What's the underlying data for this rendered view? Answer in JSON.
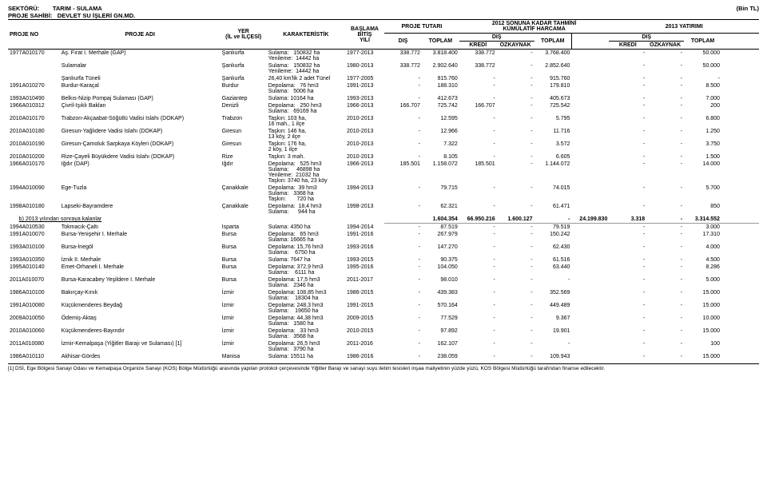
{
  "header": {
    "sektor_label": "SEKTÖRÜ:",
    "sektor": "TARIM - SULAMA",
    "sahibi_label": "PROJE SAHİBİ:",
    "sahibi": "DEVLET SU İŞLERİ GN.MD.",
    "unit": "(Bin TL)"
  },
  "cols": {
    "proje_no": "PROJE NO",
    "proje_adi": "PROJE ADI",
    "yer": "YER",
    "yer_sub": "(İL ve İLÇESİ)",
    "kar": "KARAKTERİSTİK",
    "baslama": "BAŞLAMA",
    "bitis": "BİTİŞ",
    "yili": "YILI",
    "proje_tutari": "PROJE TUTARI",
    "dis": "DIŞ",
    "toplam": "TOPLAM",
    "kumul": "2012 SONUNA KADAR TAHMİNİ",
    "kumul2": "KÜMÜLATİF HARCAMA",
    "kredi": "KREDİ",
    "ozkaynak": "ÖZKAYNAK",
    "y2013": "2013 YATIRIMI"
  },
  "rows": [
    {
      "no": "1977A010170",
      "adi": "Aş. Fırat I. Merhale (GAP)",
      "yer": "Şanlıurfa",
      "kar": "Sulama:   150832 ha\nYenileme:  14442 ha",
      "by": "1977-2013",
      "pt_dis": "338.772",
      "pt_top": "3.818.400",
      "k_dis": "338.772",
      "k_kr": "-",
      "k_oz": "3.768.400",
      "k_top": "",
      "y_dis": "-",
      "y_kr": "-",
      "y_oz": "50.000",
      "y_top": ""
    },
    {
      "no": "",
      "adi": "Sulamalar",
      "adi_indent": true,
      "yer": "Şanlıurfa",
      "kar": "Sulama:   150832 ha\nYenileme:  14442 ha",
      "by": "1980-2013",
      "pt_dis": "338.772",
      "pt_top": "2.902.640",
      "k_dis": "338.772",
      "k_kr": "-",
      "k_oz": "2.852.640",
      "k_top": "",
      "y_dis": "-",
      "y_kr": "-",
      "y_oz": "50.000",
      "y_top": ""
    },
    {
      "no": "",
      "adi": "Şanlıurfa Tüneli",
      "adi_indent": true,
      "yer": "Şanlıurfa",
      "kar": "26,40 km'lik 2 adet Tünel",
      "by": "1977-2005",
      "pt_dis": "-",
      "pt_top": "915.760",
      "k_dis": "-",
      "k_kr": "-",
      "k_oz": "915.760",
      "k_top": "",
      "y_dis": "-",
      "y_kr": "-",
      "y_oz": "-",
      "y_top": ""
    },
    {
      "no": "1991A010270",
      "adi": "Burdur-Karaçal",
      "yer": "Burdur",
      "kar": "Depolama:   76 hm3\nSulama:   5006 ha",
      "by": "1991-2013",
      "pt_dis": "-",
      "pt_top": "188.310",
      "k_dis": "-",
      "k_kr": "-",
      "k_oz": "179.810",
      "k_top": "",
      "y_dis": "-",
      "y_kr": "-",
      "y_oz": "8.500",
      "y_top": ""
    },
    {
      "no": "1993A010490",
      "adi": "Belkıs-Nizip Pompaj Sulaması (GAP)",
      "yer": "Gaziantep",
      "kar": "Sulama:   10164 ha",
      "by": "1993-2013",
      "pt_dis": "-",
      "pt_top": "412.673",
      "k_dis": "-",
      "k_kr": "-",
      "k_oz": "405.673",
      "k_top": "",
      "y_dis": "-",
      "y_kr": "-",
      "y_oz": "7.000",
      "y_top": ""
    },
    {
      "no": "1966A010312",
      "adi": "Çivril-Işıklı Baklan",
      "yer": "Denizli",
      "kar": "Depolama:   250 hm3\nSulama:   69169 ha",
      "by": "1966-2013",
      "pt_dis": "166.707",
      "pt_top": "725.742",
      "k_dis": "166.707",
      "k_kr": "-",
      "k_oz": "725.542",
      "k_top": "",
      "y_dis": "-",
      "y_kr": "-",
      "y_oz": "200",
      "y_top": ""
    },
    {
      "no": "2010A010170",
      "adi": "Trabzon-Akçaabat-Söğütlü Vadisi Islahı (DOKAP)",
      "yer": "Trabzon",
      "kar": "Taşkın: 103 ha,\n16 mah., 1 ilçe",
      "by": "2010-2013",
      "pt_dis": "-",
      "pt_top": "12.595",
      "k_dis": "-",
      "k_kr": "-",
      "k_oz": "5.795",
      "k_top": "",
      "y_dis": "-",
      "y_kr": "-",
      "y_oz": "6.800",
      "y_top": ""
    },
    {
      "no": "2010A010180",
      "adi": "Giresun-Yağlıdere Vadisi Islahı (DOKAP)",
      "yer": "Giresun",
      "kar": "Taşkın: 146 ha,\n13 köy, 2 ilçe",
      "by": "2010-2013",
      "pt_dis": "-",
      "pt_top": "12.966",
      "k_dis": "-",
      "k_kr": "-",
      "k_oz": "11.716",
      "k_top": "",
      "y_dis": "-",
      "y_kr": "-",
      "y_oz": "1.250",
      "y_top": ""
    },
    {
      "no": "2010A010190",
      "adi": "Giresun-Çamoluk Sarpkaya Köyleri (DOKAP)",
      "yer": "Giresun",
      "kar": "Taşkın: 176 ha,\n2 köy, 1 ilçe",
      "by": "2010-2013",
      "pt_dis": "-",
      "pt_top": "7.322",
      "k_dis": "-",
      "k_kr": "-",
      "k_oz": "3.572",
      "k_top": "",
      "y_dis": "-",
      "y_kr": "-",
      "y_oz": "3.750",
      "y_top": ""
    },
    {
      "no": "2010A010200",
      "adi": "Rize-Çayeli Büyükdere Vadisi Islahı (DOKAP)",
      "yer": "Rize",
      "kar": "Taşkın: 3 mah.",
      "by": "2010-2013",
      "pt_dis": "-",
      "pt_top": "8.105",
      "k_dis": "-",
      "k_kr": "-",
      "k_oz": "6.605",
      "k_top": "",
      "y_dis": "-",
      "y_kr": "-",
      "y_oz": "1.500",
      "y_top": ""
    },
    {
      "no": "1966A010170",
      "adi": "Iğdır (DAP)",
      "yer": "Iğdır",
      "kar": "Depolama:   525 hm3\nSulama:     46898 ha\nYenileme:  21032 ha\nTaşkın: 3740 ha, 23 köy",
      "by": "1966-2013",
      "pt_dis": "185.501",
      "pt_top": "1.158.072",
      "k_dis": "185.501",
      "k_kr": "-",
      "k_oz": "1.144.072",
      "k_top": "",
      "y_dis": "-",
      "y_kr": "-",
      "y_oz": "14.000",
      "y_top": ""
    },
    {
      "no": "1994A010090",
      "adi": "Ege-Tuzla",
      "yer": "Çanakkale",
      "kar": "Depolama:  39 hm3\nSulama:   3368 ha\nTaşkın:       720 ha",
      "by": "1994-2013",
      "pt_dis": "-",
      "pt_top": "79.715",
      "k_dis": "-",
      "k_kr": "-",
      "k_oz": "74.015",
      "k_top": "",
      "y_dis": "-",
      "y_kr": "-",
      "y_oz": "5.700",
      "y_top": ""
    },
    {
      "no": "1998A010180",
      "adi": "Lapseki-Bayramdere",
      "yer": "Çanakkale",
      "kar": "Depolama:  18,4 hm3\nSulama:      944 ha",
      "by": "1998-2013",
      "pt_dis": "-",
      "pt_top": "62.321",
      "k_dis": "-",
      "k_kr": "-",
      "k_oz": "61.471",
      "k_top": "",
      "y_dis": "-",
      "y_kr": "-",
      "y_oz": "850",
      "y_top": ""
    }
  ],
  "section_b": {
    "label": "b) 2013 yılından sonraya kalanlar",
    "pt_dis": "",
    "pt_top": "1.604.354",
    "k_dis": "66.950.216",
    "k_kr": "1.600.127",
    "k_oz": "-",
    "k_top": "24.199.830",
    "y_dis": "3.318",
    "y_kr": "-",
    "y_oz": "3.314.552",
    "y_top": ""
  },
  "rows2": [
    {
      "no": "1994A010530",
      "adi": "Tokmacık-Çaltı",
      "yer": "Isparta",
      "kar": "Sulama: 4350 ha",
      "by": "1994-2014",
      "pt_dis": "-",
      "pt_top": "87.519",
      "k_dis": "-",
      "k_kr": "-",
      "k_oz": "79.519",
      "k_top": "",
      "y_dis": "-",
      "y_kr": "-",
      "y_oz": "3.000",
      "y_top": ""
    },
    {
      "no": "1991A010070",
      "adi": "Bursa-Yenişehir I. Merhale",
      "yer": "Bursa",
      "kar": "Depolama:   65 hm3\nSulama: 16665 ha",
      "by": "1991-2016",
      "pt_dis": "-",
      "pt_top": "267.979",
      "k_dis": "-",
      "k_kr": "-",
      "k_oz": "150.242",
      "k_top": "",
      "y_dis": "-",
      "y_kr": "-",
      "y_oz": "17.310",
      "y_top": ""
    },
    {
      "no": "1993A010100",
      "adi": "Bursa-İnegöl",
      "yer": "Bursa",
      "kar": "Depolama: 15,76 hm3\nSulama:    6750 ha",
      "by": "1993-2016",
      "pt_dis": "-",
      "pt_top": "147.270",
      "k_dis": "-",
      "k_kr": "-",
      "k_oz": "62.430",
      "k_top": "",
      "y_dis": "-",
      "y_kr": "-",
      "y_oz": "4.000",
      "y_top": ""
    },
    {
      "no": "1993A010350",
      "adi": "İznik II. Merhale",
      "yer": "Bursa",
      "kar": "Sulama: 7647 ha",
      "by": "1993-2015",
      "pt_dis": "-",
      "pt_top": "90.375",
      "k_dis": "-",
      "k_kr": "-",
      "k_oz": "61.516",
      "k_top": "",
      "y_dis": "-",
      "y_kr": "-",
      "y_oz": "4.500",
      "y_top": ""
    },
    {
      "no": "1995A010140",
      "adi": "Emet-Orhaneli I. Merhale",
      "yer": "Bursa",
      "kar": "Depolama: 372,9 hm3\nSulama:    6111 ha",
      "by": "1995-2016",
      "pt_dis": "-",
      "pt_top": "104.050",
      "k_dis": "-",
      "k_kr": "-",
      "k_oz": "63.440",
      "k_top": "",
      "y_dis": "-",
      "y_kr": "-",
      "y_oz": "8.286",
      "y_top": ""
    },
    {
      "no": "2011A010070",
      "adi": "Bursa-Karacabey Yeşildere I. Merhale",
      "yer": "Bursa",
      "kar": "Depolama: 17,5 hm3\nSulama:   2346 ha",
      "by": "2011-2017",
      "pt_dis": "-",
      "pt_top": "98.010",
      "k_dis": "-",
      "k_kr": "-",
      "k_oz": "-",
      "k_top": "",
      "y_dis": "-",
      "y_kr": "-",
      "y_oz": "5.000",
      "y_top": ""
    },
    {
      "no": "1986A010100",
      "adi": "Bakırçay-Kınık",
      "yer": "İzmir",
      "kar": "Depolama: 108,85 hm3\nSulama:    18304 ha",
      "by": "1986-2015",
      "pt_dis": "-",
      "pt_top": "439.383",
      "k_dis": "-",
      "k_kr": "-",
      "k_oz": "352.569",
      "k_top": "",
      "y_dis": "-",
      "y_kr": "-",
      "y_oz": "15.000",
      "y_top": ""
    },
    {
      "no": "1991A010080",
      "adi": "Küçükmenderes Beydağ",
      "yer": "İzmir",
      "kar": "Depolama: 248,3 hm3\nSulama:    19650 ha",
      "by": "1991-2015",
      "pt_dis": "-",
      "pt_top": "570.164",
      "k_dis": "-",
      "k_kr": "-",
      "k_oz": "449.489",
      "k_top": "",
      "y_dis": "-",
      "y_kr": "-",
      "y_oz": "15.000",
      "y_top": ""
    },
    {
      "no": "2009A010050",
      "adi": "Ödemiş-Aktaş",
      "yer": "İzmir",
      "kar": "Depolama: 44,38 hm3\nSulama:   1580 ha",
      "by": "2009-2015",
      "pt_dis": "-",
      "pt_top": "77.529",
      "k_dis": "-",
      "k_kr": "-",
      "k_oz": "9.367",
      "k_top": "",
      "y_dis": "-",
      "y_kr": "-",
      "y_oz": "10.000",
      "y_top": ""
    },
    {
      "no": "2010A010060",
      "adi": "Küçükmenderes-Bayındır",
      "yer": "İzmir",
      "kar": "Depolama:   33 hm3\nSulama:   3568 ha",
      "by": "2010-2015",
      "pt_dis": "-",
      "pt_top": "97.892",
      "k_dis": "-",
      "k_kr": "-",
      "k_oz": "19.901",
      "k_top": "",
      "y_dis": "-",
      "y_kr": "-",
      "y_oz": "15.000",
      "y_top": ""
    },
    {
      "no": "2011A010080",
      "adi": "İzmir-Kemalpaşa (Yiğitler Barajı ve Sulaması) [1]",
      "yer": "İzmir",
      "kar": "Depolama: 26,5 hm3\nSulama:   3790 ha",
      "by": "2011-2016",
      "pt_dis": "-",
      "pt_top": "162.107",
      "k_dis": "-",
      "k_kr": "-",
      "k_oz": "-",
      "k_top": "",
      "y_dis": "-",
      "y_kr": "-",
      "y_oz": "100",
      "y_top": ""
    },
    {
      "no": "1986A010110",
      "adi": "Akhisar-Gördes",
      "yer": "Manisa",
      "kar": "Sulama: 15511 ha",
      "by": "1986-2016",
      "pt_dis": "-",
      "pt_top": "238.059",
      "k_dis": "-",
      "k_kr": "-",
      "k_oz": "109.943",
      "k_top": "",
      "y_dis": "-",
      "y_kr": "-",
      "y_oz": "15.000",
      "y_top": ""
    }
  ],
  "footnote": "[1] DSİ, Ege Bölgesi Sanayi Odası ve Kemalpaşa Organize Sanayi (KOS) Bölge Müdürlüğü arasında yapılan protokol çerçevesinde Yiğitler Barajı ve sanayi suyu iletim tesisleri inşaa maliyetinin yüzde yüzü, KOS Bölgesi Müdürlüğü tarafından finanse edilecektir."
}
